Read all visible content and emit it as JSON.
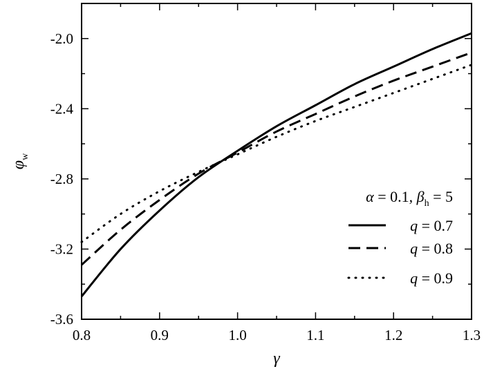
{
  "chart_data": {
    "type": "line",
    "xlabel": "γ",
    "ylabel": "φ",
    "ylabel_sub": "w",
    "xlim": [
      0.8,
      1.3
    ],
    "ylim": [
      -3.6,
      -1.8
    ],
    "xticks": [
      0.8,
      0.9,
      1.0,
      1.1,
      1.2,
      1.3
    ],
    "xtick_labels": [
      "0.8",
      "0.9",
      "1.0",
      "1.1",
      "1.2",
      "1.3"
    ],
    "yticks": [
      -3.6,
      -3.2,
      -2.8,
      -2.4,
      -2.0
    ],
    "ytick_labels": [
      "-3.6",
      "-3.2",
      "-2.8",
      "-2.4",
      "-2.0"
    ],
    "grid": false,
    "legend": {
      "placement": "bottom-right",
      "title_alpha": "α",
      "title_alpha_value": " = 0.1, ",
      "title_beta": "β",
      "title_beta_sub": "h",
      "title_beta_value": " = 5"
    },
    "series": [
      {
        "name": "q = 0.7",
        "name_var": "q",
        "name_value": " = 0.7",
        "style": "solid",
        "x": [
          0.8,
          0.85,
          0.9,
          0.95,
          1.0,
          1.05,
          1.1,
          1.15,
          1.2,
          1.25,
          1.3
        ],
        "y": [
          -3.47,
          -3.2,
          -2.98,
          -2.79,
          -2.64,
          -2.5,
          -2.38,
          -2.26,
          -2.16,
          -2.06,
          -1.97
        ]
      },
      {
        "name": "q = 0.8",
        "name_var": "q",
        "name_value": " = 0.8",
        "style": "dashed",
        "x": [
          0.8,
          0.85,
          0.9,
          0.95,
          1.0,
          1.05,
          1.1,
          1.15,
          1.2,
          1.25,
          1.3
        ],
        "y": [
          -3.29,
          -3.09,
          -2.92,
          -2.77,
          -2.65,
          -2.53,
          -2.43,
          -2.33,
          -2.24,
          -2.16,
          -2.08
        ]
      },
      {
        "name": "q = 0.9",
        "name_var": "q",
        "name_value": " = 0.9",
        "style": "dotted",
        "x": [
          0.8,
          0.85,
          0.9,
          0.95,
          1.0,
          1.05,
          1.1,
          1.15,
          1.2,
          1.25,
          1.3
        ],
        "y": [
          -3.16,
          -3.0,
          -2.87,
          -2.76,
          -2.66,
          -2.56,
          -2.47,
          -2.39,
          -2.31,
          -2.23,
          -2.15
        ]
      }
    ]
  }
}
